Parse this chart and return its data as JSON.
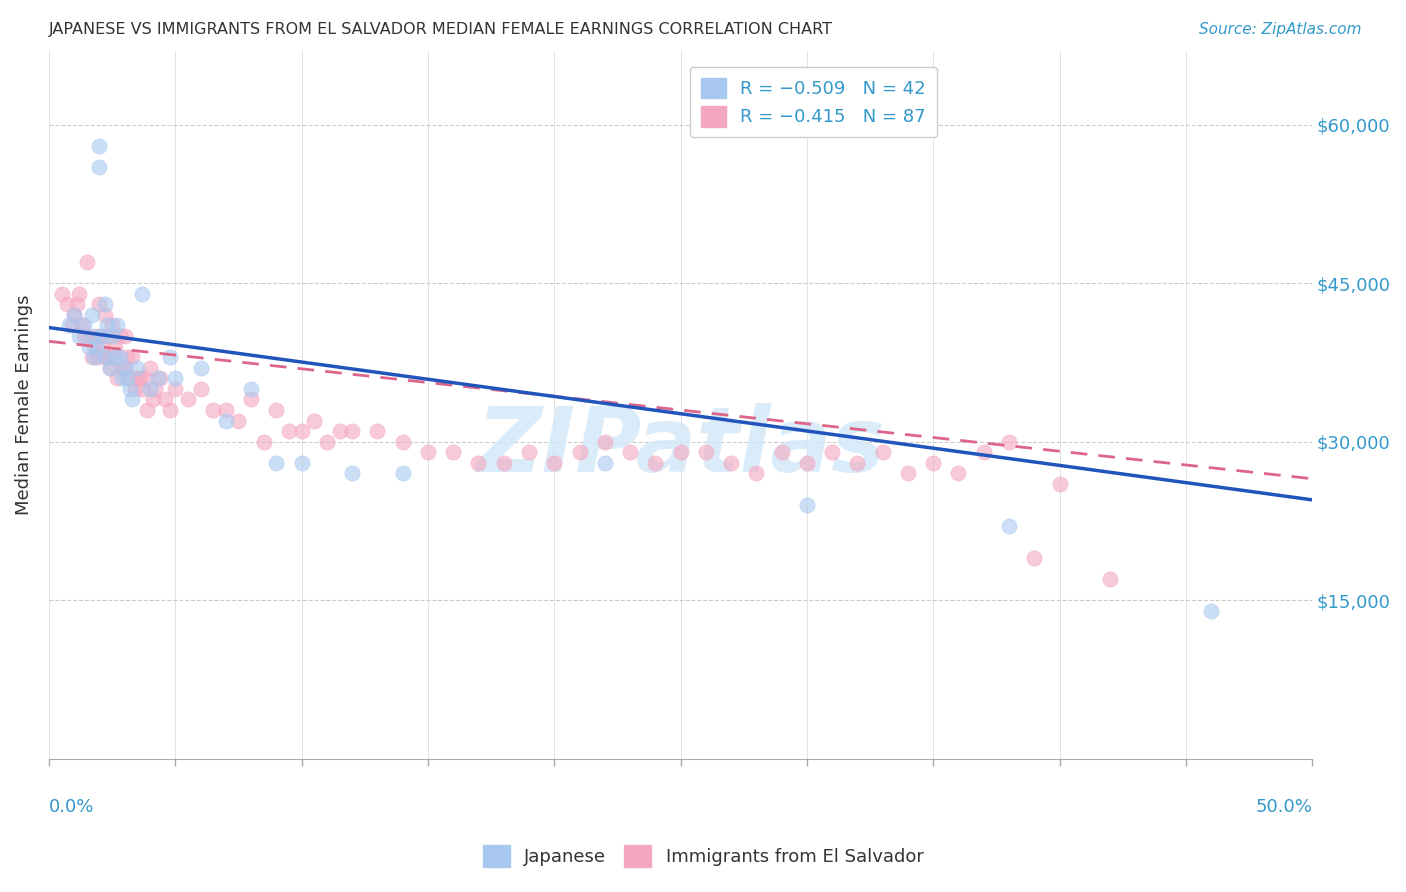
{
  "title": "JAPANESE VS IMMIGRANTS FROM EL SALVADOR MEDIAN FEMALE EARNINGS CORRELATION CHART",
  "source": "Source: ZipAtlas.com",
  "ylabel": "Median Female Earnings",
  "ytick_labels": [
    "$15,000",
    "$30,000",
    "$45,000",
    "$60,000"
  ],
  "ytick_values": [
    15000,
    30000,
    45000,
    60000
  ],
  "ylim": [
    0,
    67000
  ],
  "xlim": [
    0.0,
    0.5
  ],
  "blue_dot_color": "#a8c8f0",
  "pink_dot_color": "#f4a8c0",
  "blue_line_color": "#2255bb",
  "pink_line_color": "#dd6688",
  "watermark_text": "ZIPatlas",
  "watermark_color": "#d4e8f8",
  "axis_label_color": "#3399cc",
  "text_color": "#333333",
  "grid_color": "#cccccc",
  "japanese_x": [
    0.008,
    0.01,
    0.012,
    0.014,
    0.016,
    0.017,
    0.018,
    0.018,
    0.019,
    0.02,
    0.02,
    0.021,
    0.022,
    0.022,
    0.023,
    0.024,
    0.025,
    0.026,
    0.027,
    0.028,
    0.029,
    0.03,
    0.031,
    0.032,
    0.033,
    0.035,
    0.037,
    0.04,
    0.043,
    0.048,
    0.05,
    0.06,
    0.07,
    0.08,
    0.09,
    0.1,
    0.12,
    0.14,
    0.22,
    0.3,
    0.38,
    0.46
  ],
  "japanese_y": [
    41000,
    42000,
    40000,
    41000,
    39000,
    42000,
    40000,
    38000,
    39000,
    58000,
    56000,
    40000,
    43000,
    38000,
    41000,
    37000,
    40000,
    38000,
    41000,
    38000,
    36000,
    37000,
    36000,
    35000,
    34000,
    37000,
    44000,
    35000,
    36000,
    38000,
    36000,
    37000,
    32000,
    35000,
    28000,
    28000,
    27000,
    27000,
    28000,
    24000,
    22000,
    14000
  ],
  "salvador_x": [
    0.005,
    0.007,
    0.009,
    0.01,
    0.011,
    0.012,
    0.013,
    0.014,
    0.015,
    0.016,
    0.017,
    0.018,
    0.019,
    0.02,
    0.02,
    0.021,
    0.022,
    0.022,
    0.023,
    0.024,
    0.025,
    0.025,
    0.026,
    0.027,
    0.028,
    0.029,
    0.03,
    0.03,
    0.031,
    0.032,
    0.033,
    0.034,
    0.035,
    0.036,
    0.037,
    0.038,
    0.039,
    0.04,
    0.041,
    0.042,
    0.044,
    0.046,
    0.048,
    0.05,
    0.055,
    0.06,
    0.065,
    0.07,
    0.075,
    0.08,
    0.085,
    0.09,
    0.095,
    0.1,
    0.105,
    0.11,
    0.115,
    0.12,
    0.13,
    0.14,
    0.15,
    0.16,
    0.17,
    0.18,
    0.19,
    0.2,
    0.21,
    0.22,
    0.23,
    0.24,
    0.25,
    0.26,
    0.27,
    0.28,
    0.29,
    0.3,
    0.31,
    0.32,
    0.33,
    0.34,
    0.35,
    0.36,
    0.37,
    0.38,
    0.39,
    0.4,
    0.42
  ],
  "salvador_y": [
    44000,
    43000,
    41000,
    42000,
    43000,
    44000,
    41000,
    40000,
    47000,
    40000,
    38000,
    39000,
    38000,
    43000,
    40000,
    39000,
    42000,
    38000,
    40000,
    37000,
    41000,
    38000,
    39000,
    36000,
    40000,
    37000,
    40000,
    37000,
    38000,
    36000,
    38000,
    35000,
    36000,
    36000,
    35000,
    36000,
    33000,
    37000,
    34000,
    35000,
    36000,
    34000,
    33000,
    35000,
    34000,
    35000,
    33000,
    33000,
    32000,
    34000,
    30000,
    33000,
    31000,
    31000,
    32000,
    30000,
    31000,
    31000,
    31000,
    30000,
    29000,
    29000,
    28000,
    28000,
    29000,
    28000,
    29000,
    30000,
    29000,
    28000,
    29000,
    29000,
    28000,
    27000,
    29000,
    28000,
    29000,
    28000,
    29000,
    27000,
    28000,
    27000,
    29000,
    30000,
    19000,
    26000,
    17000
  ],
  "trend_japanese_x0": 0.0,
  "trend_japanese_y0": 40800,
  "trend_japanese_x1": 0.5,
  "trend_japanese_y1": 24500,
  "trend_salvador_x0": 0.0,
  "trend_salvador_y0": 39500,
  "trend_salvador_x1": 0.5,
  "trend_salvador_y1": 26500
}
